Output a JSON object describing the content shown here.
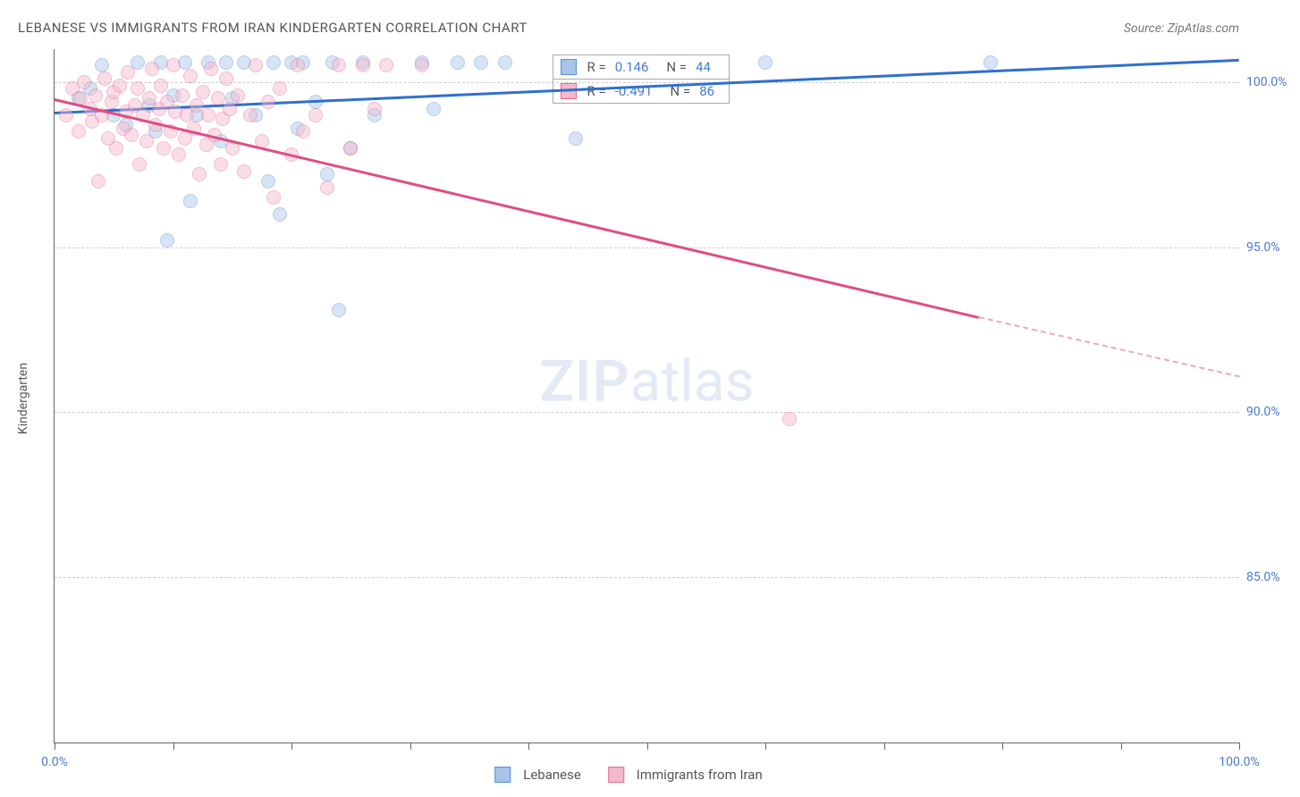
{
  "title": "LEBANESE VS IMMIGRANTS FROM IRAN KINDERGARTEN CORRELATION CHART",
  "source": "Source: ZipAtlas.com",
  "ylabel": "Kindergarten",
  "watermark_zip": "ZIP",
  "watermark_atlas": "atlas",
  "chart": {
    "type": "scatter",
    "xlim": [
      0,
      100
    ],
    "ylim": [
      80,
      101
    ],
    "xticks": [
      0,
      10,
      20,
      30,
      40,
      50,
      60,
      70,
      80,
      90,
      100
    ],
    "xtick_labels": {
      "0": "0.0%",
      "100": "100.0%"
    },
    "yticks": [
      85,
      90,
      95,
      100
    ],
    "ytick_labels": {
      "85": "85.0%",
      "90": "90.0%",
      "95": "95.0%",
      "100": "100.0%"
    },
    "grid_color": "#cccccc",
    "background_color": "#ffffff",
    "axis_color": "#666666",
    "tick_label_color": "#4a7bd0",
    "marker_radius": 8,
    "marker_opacity": 0.45,
    "legend": [
      {
        "label": "Lebanese",
        "fill": "#a8c4ea",
        "stroke": "#5b8fd6"
      },
      {
        "label": "Immigrants from Iran",
        "fill": "#f5b8cb",
        "stroke": "#e66a94"
      }
    ],
    "stats": [
      {
        "swatch_fill": "#a8c4ea",
        "swatch_stroke": "#5b8fd6",
        "r_label": "R =",
        "r": "0.146",
        "n_label": "N =",
        "n": "44"
      },
      {
        "swatch_fill": "#f5b8cb",
        "swatch_stroke": "#e66a94",
        "r_label": "R =",
        "r": "-0.491",
        "n_label": "N =",
        "n": "86"
      }
    ],
    "series": [
      {
        "name": "lebanese",
        "fill": "#a8c4ea",
        "stroke": "#5b8fd6",
        "trend": {
          "x1": 0,
          "y1": 99.1,
          "x2": 100,
          "y2": 100.7,
          "color": "#2f6fd0",
          "width": 2.5
        },
        "points": [
          [
            2,
            99.5
          ],
          [
            3,
            99.8
          ],
          [
            4,
            100.5
          ],
          [
            5,
            99.0
          ],
          [
            6,
            98.7
          ],
          [
            7,
            100.6
          ],
          [
            8,
            99.3
          ],
          [
            8.5,
            98.5
          ],
          [
            9,
            100.6
          ],
          [
            9.5,
            95.2
          ],
          [
            10,
            99.6
          ],
          [
            11,
            100.6
          ],
          [
            11.5,
            96.4
          ],
          [
            12,
            99.0
          ],
          [
            13,
            100.6
          ],
          [
            14,
            98.2
          ],
          [
            14.5,
            100.6
          ],
          [
            15,
            99.5
          ],
          [
            16,
            100.6
          ],
          [
            17,
            99.0
          ],
          [
            18,
            97.0
          ],
          [
            18.5,
            100.6
          ],
          [
            19,
            96.0
          ],
          [
            20,
            100.6
          ],
          [
            20.5,
            98.6
          ],
          [
            21,
            100.6
          ],
          [
            22,
            99.4
          ],
          [
            23,
            97.2
          ],
          [
            23.5,
            100.6
          ],
          [
            24,
            93.1
          ],
          [
            25,
            98.0
          ],
          [
            26,
            100.6
          ],
          [
            27,
            99.0
          ],
          [
            31,
            100.6
          ],
          [
            32,
            99.2
          ],
          [
            34,
            100.6
          ],
          [
            36,
            100.6
          ],
          [
            38,
            100.6
          ],
          [
            44,
            98.3
          ],
          [
            60,
            100.6
          ],
          [
            79,
            100.6
          ]
        ]
      },
      {
        "name": "iran",
        "fill": "#f5b8cb",
        "stroke": "#e66a94",
        "trend": {
          "x1": 0,
          "y1": 99.5,
          "x2": 78,
          "y2": 92.9,
          "color": "#e14d82",
          "width": 2.5,
          "dash_after_x": 78,
          "dash_end_x": 100,
          "dash_end_y": 91.1
        },
        "points": [
          [
            1,
            99.0
          ],
          [
            1.5,
            99.8
          ],
          [
            2,
            98.5
          ],
          [
            2.2,
            99.5
          ],
          [
            2.5,
            100.0
          ],
          [
            3,
            99.2
          ],
          [
            3.2,
            98.8
          ],
          [
            3.5,
            99.6
          ],
          [
            3.7,
            97.0
          ],
          [
            4,
            99.0
          ],
          [
            4.2,
            100.1
          ],
          [
            4.5,
            98.3
          ],
          [
            4.8,
            99.4
          ],
          [
            5,
            99.7
          ],
          [
            5.2,
            98.0
          ],
          [
            5.5,
            99.9
          ],
          [
            5.8,
            98.6
          ],
          [
            6,
            99.1
          ],
          [
            6.2,
            100.3
          ],
          [
            6.5,
            98.4
          ],
          [
            6.8,
            99.3
          ],
          [
            7,
            99.8
          ],
          [
            7.2,
            97.5
          ],
          [
            7.5,
            99.0
          ],
          [
            7.8,
            98.2
          ],
          [
            8,
            99.5
          ],
          [
            8.2,
            100.4
          ],
          [
            8.5,
            98.7
          ],
          [
            8.8,
            99.2
          ],
          [
            9,
            99.9
          ],
          [
            9.2,
            98.0
          ],
          [
            9.5,
            99.4
          ],
          [
            9.8,
            98.5
          ],
          [
            10,
            100.5
          ],
          [
            10.2,
            99.1
          ],
          [
            10.5,
            97.8
          ],
          [
            10.8,
            99.6
          ],
          [
            11,
            98.3
          ],
          [
            11.2,
            99.0
          ],
          [
            11.5,
            100.2
          ],
          [
            11.8,
            98.6
          ],
          [
            12,
            99.3
          ],
          [
            12.2,
            97.2
          ],
          [
            12.5,
            99.7
          ],
          [
            12.8,
            98.1
          ],
          [
            13,
            99.0
          ],
          [
            13.2,
            100.4
          ],
          [
            13.5,
            98.4
          ],
          [
            13.8,
            99.5
          ],
          [
            14,
            97.5
          ],
          [
            14.2,
            98.9
          ],
          [
            14.5,
            100.1
          ],
          [
            14.8,
            99.2
          ],
          [
            15,
            98.0
          ],
          [
            15.5,
            99.6
          ],
          [
            16,
            97.3
          ],
          [
            16.5,
            99.0
          ],
          [
            17,
            100.5
          ],
          [
            17.5,
            98.2
          ],
          [
            18,
            99.4
          ],
          [
            18.5,
            96.5
          ],
          [
            19,
            99.8
          ],
          [
            20,
            97.8
          ],
          [
            20.5,
            100.5
          ],
          [
            21,
            98.5
          ],
          [
            22,
            99.0
          ],
          [
            23,
            96.8
          ],
          [
            24,
            100.5
          ],
          [
            25,
            98.0
          ],
          [
            26,
            100.5
          ],
          [
            27,
            99.2
          ],
          [
            28,
            100.5
          ],
          [
            31,
            100.5
          ],
          [
            62,
            89.8
          ]
        ]
      }
    ]
  }
}
